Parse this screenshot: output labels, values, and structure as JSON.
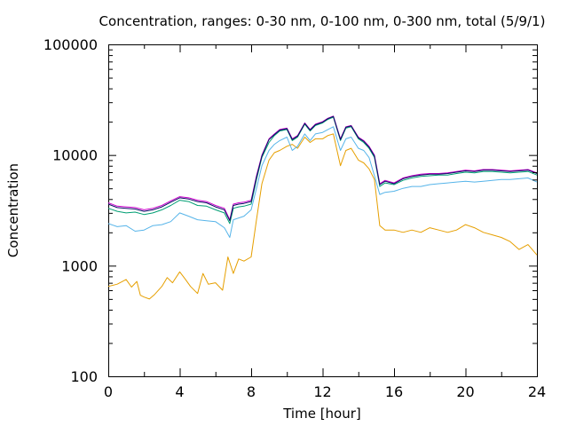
{
  "chart_data": {
    "type": "line",
    "title": "Concentration, ranges: 0-30 nm, 0-100 nm, 0-300 nm, total (5/9/1)",
    "xlabel": "Time [hour]",
    "ylabel": "Concentration",
    "xlim": [
      0,
      24
    ],
    "ylim": [
      100,
      100000
    ],
    "yscale": "log",
    "grid": false,
    "legend": "none",
    "x_ticks": [
      "0",
      "4",
      "8",
      "12",
      "16",
      "20",
      "24"
    ],
    "y_ticks": [
      "100",
      "1000",
      "10000",
      "100000"
    ],
    "x_tick_values": [
      0,
      4,
      8,
      12,
      16,
      20,
      24
    ],
    "y_tick_values": [
      100,
      1000,
      10000,
      100000
    ],
    "series": [
      {
        "color": "#E69F00",
        "x": [
          0,
          0.5,
          1.0,
          1.3,
          1.6,
          1.8,
          2.0,
          2.3,
          2.6,
          3.0,
          3.3,
          3.6,
          4.0,
          4.3,
          4.6,
          5.0,
          5.3,
          5.6,
          6.0,
          6.4,
          6.7,
          7.0,
          7.3,
          7.6,
          8.0,
          8.3,
          8.6,
          9.0,
          9.3,
          9.6,
          10.0,
          10.3,
          10.6,
          11.0,
          11.3,
          11.6,
          12.0,
          12.3,
          12.6,
          13.0,
          13.3,
          13.6,
          14.0,
          14.3,
          14.6,
          14.9,
          15.2,
          15.5,
          16.0,
          16.5,
          17.0,
          17.5,
          18.0,
          18.5,
          19.0,
          19.5,
          20.0,
          20.5,
          21.0,
          21.5,
          22.0,
          22.5,
          23.0,
          23.5,
          24.0
        ],
        "values": [
          650,
          680,
          750,
          640,
          720,
          540,
          520,
          500,
          550,
          650,
          780,
          700,
          880,
          760,
          650,
          560,
          850,
          680,
          700,
          600,
          1200,
          850,
          1150,
          1100,
          1200,
          2600,
          5500,
          9000,
          10500,
          11000,
          12000,
          12500,
          11500,
          14500,
          13000,
          14000,
          14000,
          15000,
          15500,
          8000,
          11000,
          11500,
          9000,
          8500,
          7500,
          6000,
          2300,
          2100,
          2100,
          2000,
          2100,
          2000,
          2200,
          2100,
          2000,
          2100,
          2350,
          2200,
          2000,
          1900,
          1800,
          1650,
          1400,
          1550,
          1250
        ]
      },
      {
        "color": "#56B4E9",
        "x": [
          0,
          0.5,
          1.0,
          1.5,
          2.0,
          2.5,
          3.0,
          3.5,
          4.0,
          4.5,
          5.0,
          5.5,
          6.0,
          6.5,
          6.8,
          7.0,
          7.3,
          7.6,
          8.0,
          8.3,
          8.6,
          9.0,
          9.3,
          9.6,
          10.0,
          10.3,
          10.6,
          11.0,
          11.3,
          11.6,
          12.0,
          12.3,
          12.6,
          13.0,
          13.3,
          13.6,
          14.0,
          14.3,
          14.6,
          14.9,
          15.2,
          15.5,
          16.0,
          16.5,
          17.0,
          17.5,
          18.0,
          18.5,
          19.0,
          19.5,
          20.0,
          20.5,
          21.0,
          21.5,
          22.0,
          22.5,
          23.0,
          23.5,
          24.0
        ],
        "values": [
          2400,
          2250,
          2300,
          2050,
          2100,
          2300,
          2350,
          2500,
          3000,
          2800,
          2600,
          2550,
          2500,
          2200,
          1800,
          2600,
          2700,
          2800,
          3200,
          5000,
          8000,
          11000,
          12500,
          13500,
          14500,
          11000,
          12000,
          15500,
          13500,
          15500,
          16000,
          17000,
          18000,
          11000,
          14000,
          14500,
          11500,
          11000,
          9500,
          6500,
          4400,
          4600,
          4700,
          5000,
          5200,
          5200,
          5400,
          5500,
          5600,
          5700,
          5800,
          5700,
          5800,
          5900,
          6000,
          6000,
          6100,
          6200,
          5700
        ]
      },
      {
        "color": "#009E73",
        "x": [
          0,
          0.5,
          1.0,
          1.5,
          2.0,
          2.5,
          3.0,
          3.5,
          4.0,
          4.5,
          5.0,
          5.5,
          6.0,
          6.5,
          6.8,
          7.0,
          7.3,
          7.6,
          8.0,
          8.3,
          8.6,
          9.0,
          9.3,
          9.6,
          10.0,
          10.3,
          10.6,
          11.0,
          11.3,
          11.6,
          12.0,
          12.3,
          12.6,
          13.0,
          13.3,
          13.6,
          14.0,
          14.3,
          14.6,
          14.9,
          15.2,
          15.5,
          16.0,
          16.5,
          17.0,
          17.5,
          18.0,
          18.5,
          19.0,
          19.5,
          20.0,
          20.5,
          21.0,
          21.5,
          22.0,
          22.5,
          23.0,
          23.5,
          24.0
        ],
        "values": [
          3300,
          3100,
          3000,
          3050,
          2900,
          3000,
          3200,
          3500,
          3900,
          3800,
          3500,
          3450,
          3200,
          3000,
          2400,
          3300,
          3400,
          3450,
          3600,
          6000,
          9500,
          13000,
          15000,
          16500,
          17000,
          13500,
          14500,
          19000,
          16500,
          18500,
          19500,
          21000,
          22000,
          13500,
          17500,
          18000,
          14000,
          13000,
          11500,
          9500,
          5200,
          5600,
          5400,
          5900,
          6200,
          6400,
          6500,
          6600,
          6600,
          6800,
          7000,
          6900,
          7100,
          7100,
          7000,
          6900,
          7000,
          7100,
          6600
        ]
      },
      {
        "color": "#CC00CC",
        "x": [
          0,
          0.5,
          1.0,
          1.5,
          2.0,
          2.5,
          3.0,
          3.5,
          4.0,
          4.5,
          5.0,
          5.5,
          6.0,
          6.5,
          6.8,
          7.0,
          7.3,
          7.6,
          8.0,
          8.3,
          8.6,
          9.0,
          9.3,
          9.6,
          10.0,
          10.3,
          10.6,
          11.0,
          11.3,
          11.6,
          12.0,
          12.3,
          12.6,
          13.0,
          13.3,
          13.6,
          14.0,
          14.3,
          14.6,
          14.9,
          15.2,
          15.5,
          16.0,
          16.5,
          17.0,
          17.5,
          18.0,
          18.5,
          19.0,
          19.5,
          20.0,
          20.5,
          21.0,
          21.5,
          22.0,
          22.5,
          23.0,
          23.5,
          24.0
        ],
        "values": [
          3700,
          3450,
          3400,
          3350,
          3200,
          3300,
          3500,
          3850,
          4200,
          4100,
          3900,
          3800,
          3500,
          3300,
          2600,
          3600,
          3700,
          3750,
          3900,
          6500,
          10000,
          14000,
          15500,
          17000,
          17500,
          14000,
          15000,
          19500,
          17000,
          19000,
          20000,
          21500,
          22500,
          14000,
          18000,
          18500,
          14500,
          13500,
          12000,
          10000,
          5500,
          5900,
          5600,
          6200,
          6500,
          6700,
          6800,
          6800,
          6900,
          7100,
          7300,
          7200,
          7400,
          7400,
          7300,
          7200,
          7300,
          7400,
          6900
        ]
      },
      {
        "color": "#0C0C66",
        "x": [
          0,
          0.5,
          1.0,
          1.5,
          2.0,
          2.5,
          3.0,
          3.5,
          4.0,
          4.5,
          5.0,
          5.5,
          6.0,
          6.5,
          6.8,
          7.0,
          7.3,
          7.6,
          8.0,
          8.3,
          8.6,
          9.0,
          9.3,
          9.6,
          10.0,
          10.3,
          10.6,
          11.0,
          11.3,
          11.6,
          12.0,
          12.3,
          12.6,
          13.0,
          13.3,
          13.6,
          14.0,
          14.3,
          14.6,
          14.9,
          15.2,
          15.5,
          16.0,
          16.5,
          17.0,
          17.5,
          18.0,
          18.5,
          19.0,
          19.5,
          20.0,
          20.5,
          21.0,
          21.5,
          22.0,
          22.5,
          23.0,
          23.5,
          24.0
        ],
        "values": [
          3600,
          3350,
          3300,
          3250,
          3100,
          3200,
          3400,
          3750,
          4100,
          4000,
          3800,
          3700,
          3400,
          3200,
          2550,
          3500,
          3600,
          3650,
          3800,
          6300,
          9800,
          13800,
          15300,
          16800,
          17300,
          13800,
          14800,
          19300,
          16800,
          18800,
          19800,
          21300,
          22300,
          13800,
          17800,
          18300,
          14300,
          13300,
          11800,
          9800,
          5400,
          5800,
          5500,
          6100,
          6400,
          6600,
          6700,
          6700,
          6800,
          7000,
          7200,
          7100,
          7300,
          7300,
          7200,
          7100,
          7200,
          7300,
          6800
        ]
      }
    ]
  }
}
